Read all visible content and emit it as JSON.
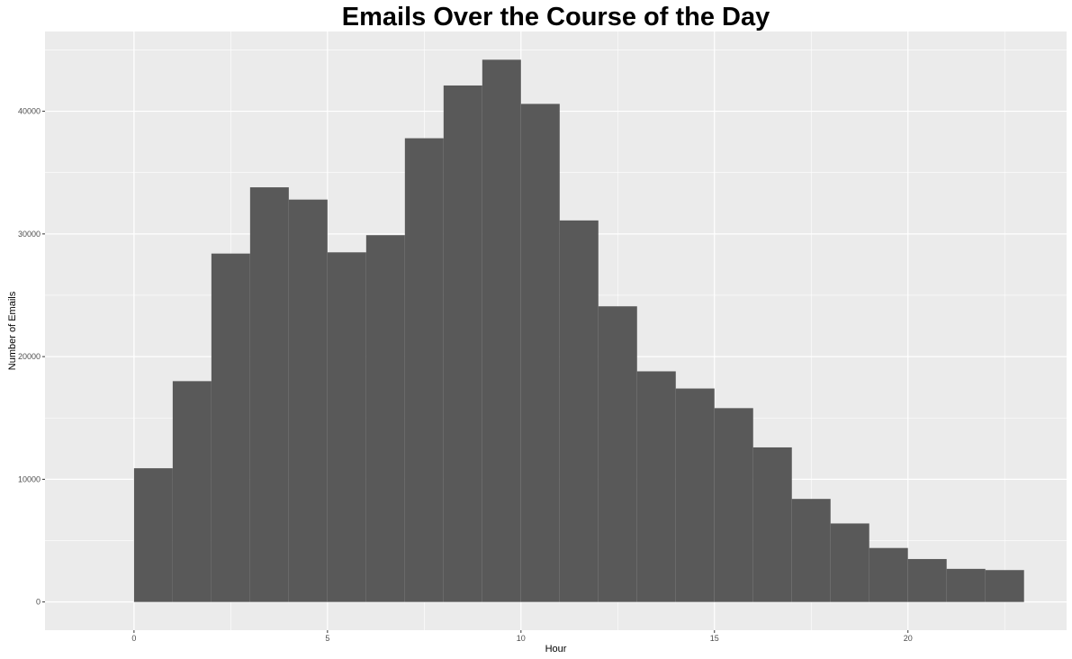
{
  "chart_data": {
    "type": "bar",
    "title": "Emails Over the Course of the Day",
    "xlabel": "Hour",
    "ylabel": "Number of Emails",
    "bin_edges": [
      0,
      1,
      2,
      3,
      4,
      5,
      6,
      7,
      8,
      9,
      10,
      11,
      12,
      13,
      14,
      15,
      16,
      17,
      18,
      19,
      20,
      21,
      22,
      23
    ],
    "values": [
      10900,
      18000,
      28400,
      33800,
      32800,
      28500,
      29900,
      37800,
      42100,
      44200,
      40600,
      31100,
      24100,
      18800,
      17400,
      15800,
      12600,
      8400,
      6400,
      4400,
      3500,
      2700,
      2600
    ],
    "xlim": [
      -2.3,
      24.1
    ],
    "ylim": [
      -2300,
      46500
    ],
    "x_ticks": [
      0,
      5,
      10,
      15,
      20
    ],
    "x_tick_labels": [
      "0",
      "5",
      "10",
      "15",
      "20"
    ],
    "y_ticks": [
      0,
      10000,
      20000,
      30000,
      40000
    ],
    "y_tick_labels": [
      "0",
      "10000",
      "20000",
      "30000",
      "40000"
    ],
    "grid": true,
    "legend": "none",
    "colors": {
      "bar": "#595959",
      "panel": "#ebebeb",
      "grid": "#ffffff"
    }
  }
}
